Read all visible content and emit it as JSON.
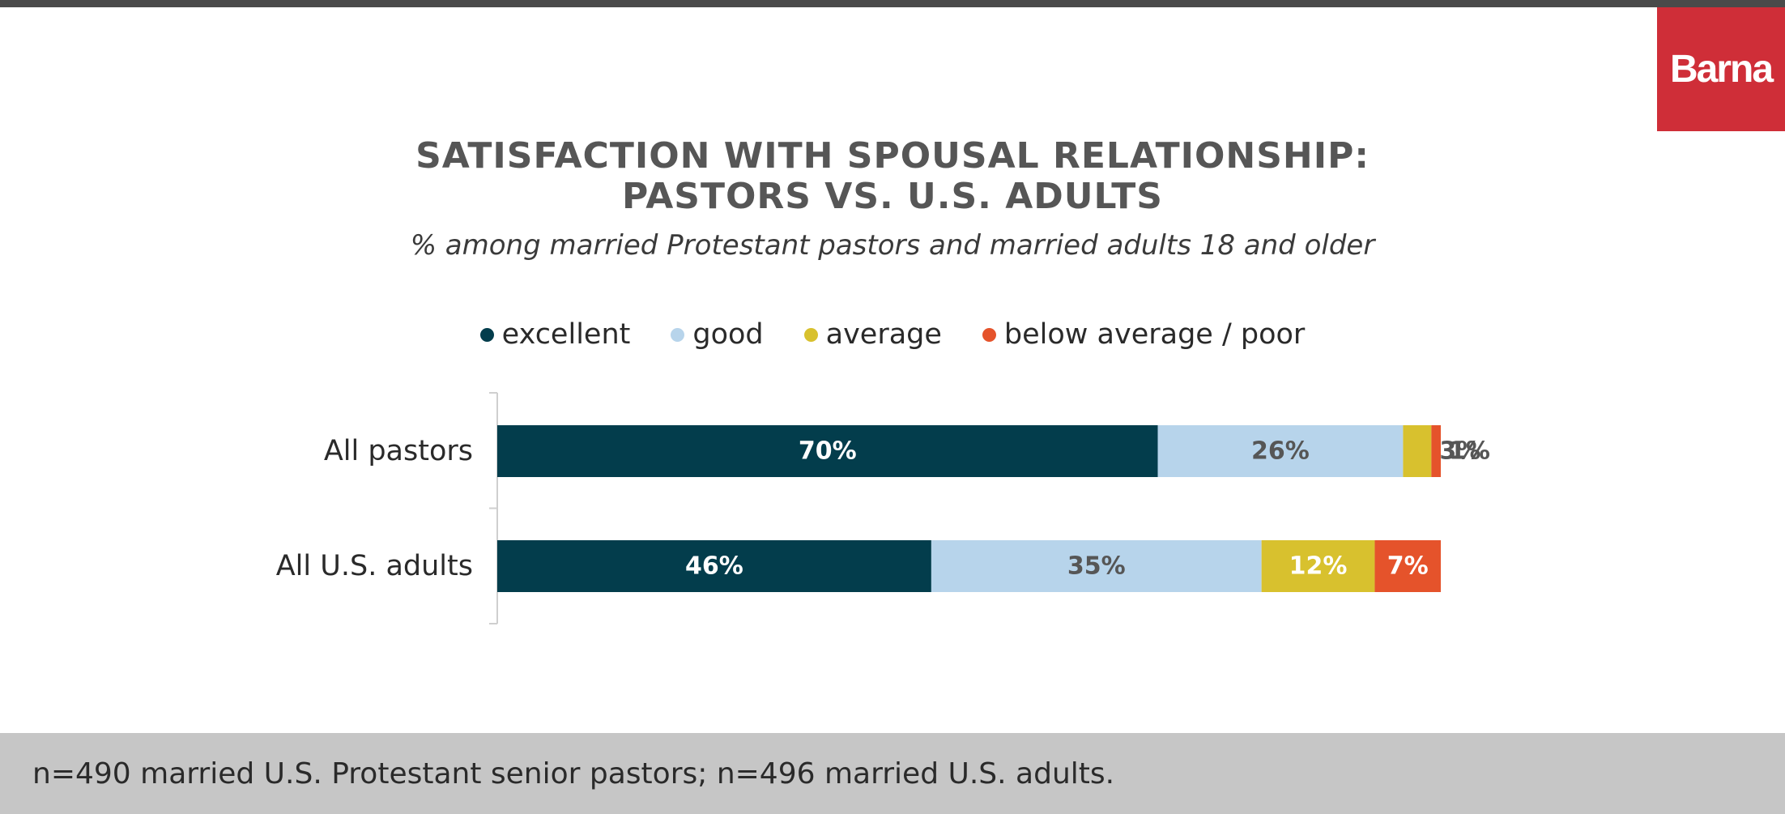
{
  "brand": {
    "logo_text": "Barna"
  },
  "chart_data": {
    "type": "bar",
    "orientation": "horizontal",
    "stacked": true,
    "title_line1": "SATISFACTION WITH SPOUSAL RELATIONSHIP:",
    "title_line2": "PASTORS VS. U.S. ADULTS",
    "subtitle": "% among married Protestant pastors and married adults 18 and older",
    "categories": [
      "All pastors",
      "All U.S. adults"
    ],
    "series": [
      {
        "name": "excellent",
        "color": "#033d4c",
        "values": [
          70,
          46
        ]
      },
      {
        "name": "good",
        "color": "#b7d4eb",
        "values": [
          26,
          35
        ]
      },
      {
        "name": "average",
        "color": "#d8c12e",
        "values": [
          3,
          12
        ]
      },
      {
        "name": "below average / poor",
        "color": "#e5532b",
        "values": [
          1,
          7
        ]
      }
    ],
    "data_labels": [
      [
        "70%",
        "26%",
        "3%",
        "1%"
      ],
      [
        "46%",
        "35%",
        "12%",
        "7%"
      ]
    ],
    "label_colors": [
      "#ffffff",
      "#565656",
      "#ffffff",
      "#ffffff"
    ],
    "xlim": [
      0,
      100
    ]
  },
  "footer": {
    "note": "n=490 married U.S. Protestant senior pastors; n=496 married U.S. adults."
  }
}
